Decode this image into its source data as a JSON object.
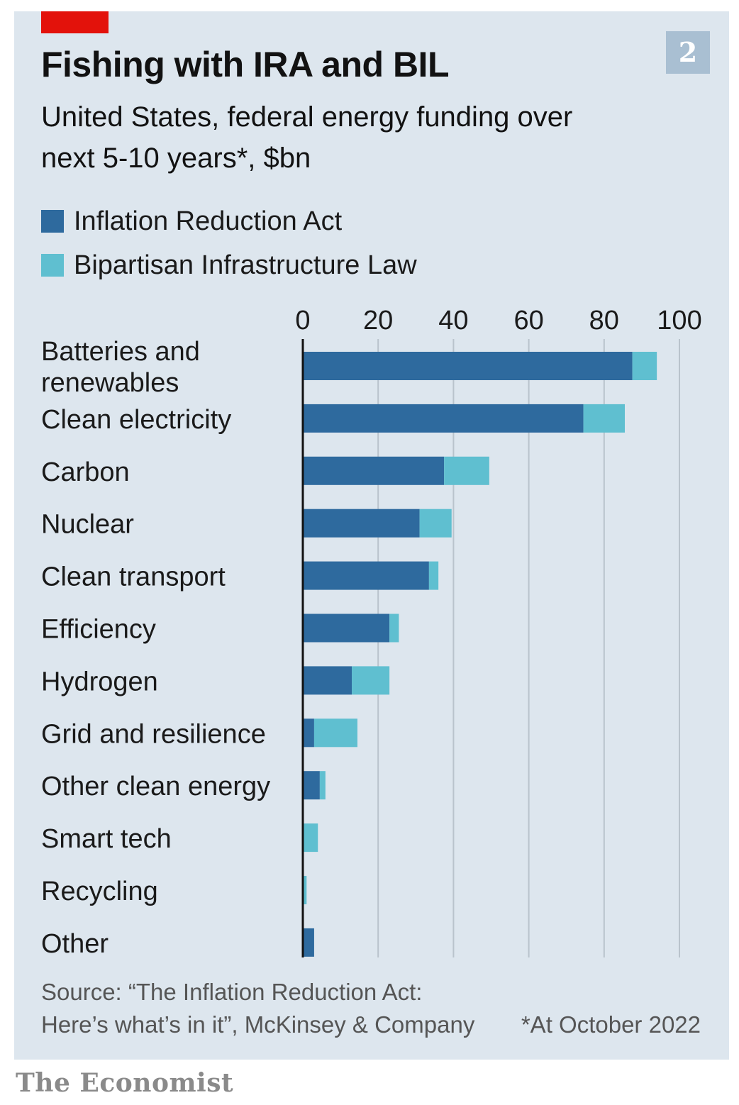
{
  "header": {
    "chart_number": "2",
    "title": "Fishing with IRA and BIL",
    "subtitle": "United States, federal energy funding over next 5-10 years*, $bn"
  },
  "legend": [
    {
      "label": "Inflation Reduction Act",
      "color": "#2e6a9e"
    },
    {
      "label": "Bipartisan Infrastructure Law",
      "color": "#5fbfd0"
    }
  ],
  "footer": {
    "source_line1": "Source: “The Inflation Reduction Act:",
    "source_line2": "Here’s what’s in it”, McKinsey & Company",
    "footnote": "*At October 2022",
    "brand": "The Economist"
  },
  "colors": {
    "panel_background": "#dde6ee",
    "accent_red": "#e3120b",
    "grid": "#b9c3cc",
    "axis": "#121212"
  },
  "chart_data": {
    "type": "bar",
    "orientation": "horizontal",
    "stacked": true,
    "title": "Fishing with IRA and BIL",
    "subtitle": "United States, federal energy funding over next 5-10 years*, $bn",
    "categories": [
      "Batteries and renewables",
      "Clean electricity",
      "Carbon",
      "Nuclear",
      "Clean transport",
      "Efficiency",
      "Hydrogen",
      "Grid and resilience",
      "Other clean energy",
      "Smart tech",
      "Recycling",
      "Other"
    ],
    "category_lines": [
      [
        "Batteries and",
        "renewables"
      ],
      [
        "Clean electricity"
      ],
      [
        "Carbon"
      ],
      [
        "Nuclear"
      ],
      [
        "Clean transport"
      ],
      [
        "Efficiency"
      ],
      [
        "Hydrogen"
      ],
      [
        "Grid and resilience"
      ],
      [
        "Other clean energy"
      ],
      [
        "Smart tech"
      ],
      [
        "Recycling"
      ],
      [
        "Other"
      ]
    ],
    "series": [
      {
        "name": "Inflation Reduction Act",
        "values": [
          87.5,
          74.5,
          37.5,
          31,
          33.5,
          23,
          13,
          3,
          4.5,
          0,
          0,
          3
        ]
      },
      {
        "name": "Bipartisan Infrastructure Law",
        "values": [
          6.5,
          11,
          12,
          8.5,
          2.5,
          2.5,
          10,
          11.5,
          1.5,
          4,
          1,
          0
        ]
      }
    ],
    "xlim": [
      0,
      100
    ],
    "xticks": [
      0,
      20,
      40,
      60,
      80,
      100
    ],
    "grid": true,
    "legend_position": "top-left"
  }
}
